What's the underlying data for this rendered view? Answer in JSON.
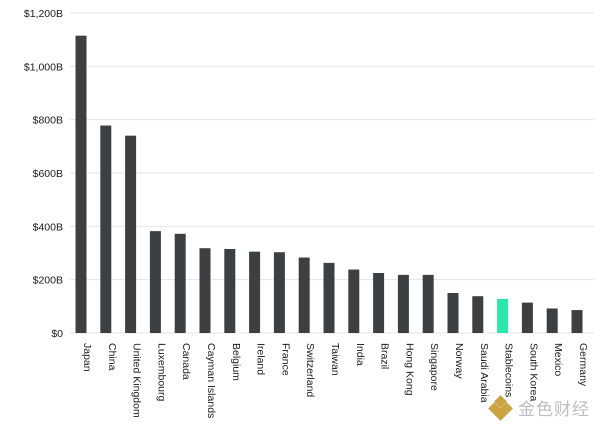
{
  "chart_data": {
    "type": "bar",
    "title": "",
    "xlabel": "",
    "ylabel": "",
    "ylim": [
      0,
      1200
    ],
    "yticks": [
      {
        "value": 0,
        "label": "$0"
      },
      {
        "value": 200,
        "label": "$200B"
      },
      {
        "value": 400,
        "label": "$400B"
      },
      {
        "value": 600,
        "label": "$600B"
      },
      {
        "value": 800,
        "label": "$800B"
      },
      {
        "value": 1000,
        "label": "$1,000B"
      },
      {
        "value": 1200,
        "label": "$1,200B"
      }
    ],
    "grid": true,
    "categories": [
      "Japan",
      "China",
      "United Kingdom",
      "Luxembourg",
      "Canada",
      "Cayman Islands",
      "Belgium",
      "Ireland",
      "France",
      "Switzerland",
      "Taiwan",
      "India",
      "Brazil",
      "Hong Kong",
      "Singapore",
      "Norway",
      "Saudi Arabia",
      "Stablecoins",
      "South Korea",
      "Mexico",
      "Germany"
    ],
    "values": [
      1115,
      778,
      740,
      382,
      372,
      318,
      315,
      305,
      303,
      283,
      263,
      238,
      225,
      218,
      218,
      150,
      138,
      128,
      114,
      92,
      86
    ],
    "highlight_category": "Stablecoins",
    "colors": {
      "bar": "#3d4043",
      "highlight": "#2ee6a8",
      "grid": "#e4e4e4",
      "text": "#1a1a1a"
    }
  },
  "watermark": {
    "text": "金色财经",
    "icon": "jinse-logo-icon"
  }
}
